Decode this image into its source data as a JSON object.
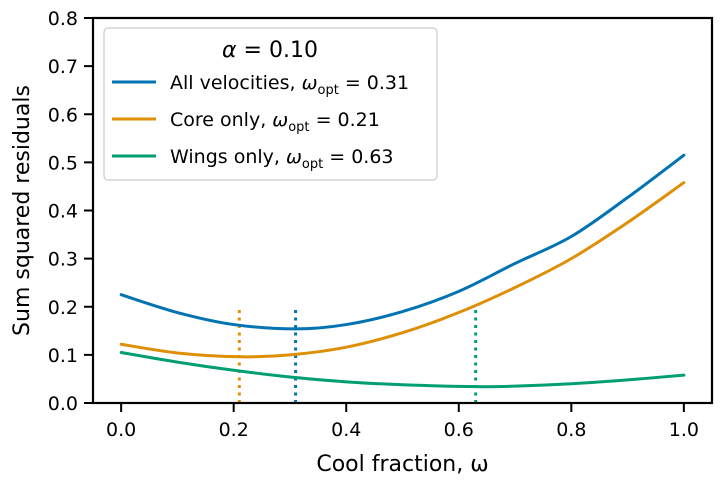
{
  "chart_data": {
    "type": "line",
    "title": "",
    "xlabel": "Cool fraction, ω",
    "ylabel": "Sum squared residuals",
    "xlim": [
      -0.05,
      1.05
    ],
    "ylim": [
      0.0,
      0.8
    ],
    "xticks": [
      "0.0",
      "0.2",
      "0.4",
      "0.6",
      "0.8",
      "1.0"
    ],
    "yticks": [
      "0.0",
      "0.1",
      "0.2",
      "0.3",
      "0.4",
      "0.5",
      "0.6",
      "0.7",
      "0.8"
    ],
    "grid": false,
    "legend": {
      "placement": "top-left",
      "title": "α = 0.10"
    },
    "series": [
      {
        "name": "All velocities, ωopt = 0.31",
        "label_main": "All velocities, ",
        "label_sym": "ω",
        "label_sub": "opt",
        "label_val": " = 0.31",
        "color": "#0173b2",
        "x": [
          0.0,
          0.1,
          0.2,
          0.31,
          0.4,
          0.5,
          0.6,
          0.7,
          0.8,
          0.9,
          1.0
        ],
        "y": [
          0.225,
          0.188,
          0.163,
          0.154,
          0.163,
          0.19,
          0.232,
          0.29,
          0.346,
          0.427,
          0.515
        ],
        "opt": 0.31,
        "opt_line_top": 0.197
      },
      {
        "name": "Core only, ωopt = 0.21",
        "label_main": "Core only, ",
        "label_sym": "ω",
        "label_sub": "opt",
        "label_val": " = 0.21",
        "color": "#de8f05",
        "x": [
          0.0,
          0.1,
          0.21,
          0.3,
          0.4,
          0.5,
          0.6,
          0.7,
          0.8,
          0.9,
          1.0
        ],
        "y": [
          0.122,
          0.104,
          0.096,
          0.1,
          0.116,
          0.146,
          0.188,
          0.24,
          0.3,
          0.375,
          0.458
        ],
        "opt": 0.21,
        "opt_line_top": 0.197
      },
      {
        "name": "Wings only, ωopt = 0.63",
        "label_main": "Wings only, ",
        "label_sym": "ω",
        "label_sub": "opt",
        "label_val": " = 0.63",
        "color": "#029e73",
        "x": [
          0.0,
          0.1,
          0.2,
          0.3,
          0.4,
          0.5,
          0.63,
          0.7,
          0.8,
          0.9,
          1.0
        ],
        "y": [
          0.105,
          0.085,
          0.068,
          0.054,
          0.044,
          0.038,
          0.034,
          0.035,
          0.04,
          0.048,
          0.058
        ],
        "opt": 0.63,
        "opt_line_top": 0.197
      }
    ]
  }
}
